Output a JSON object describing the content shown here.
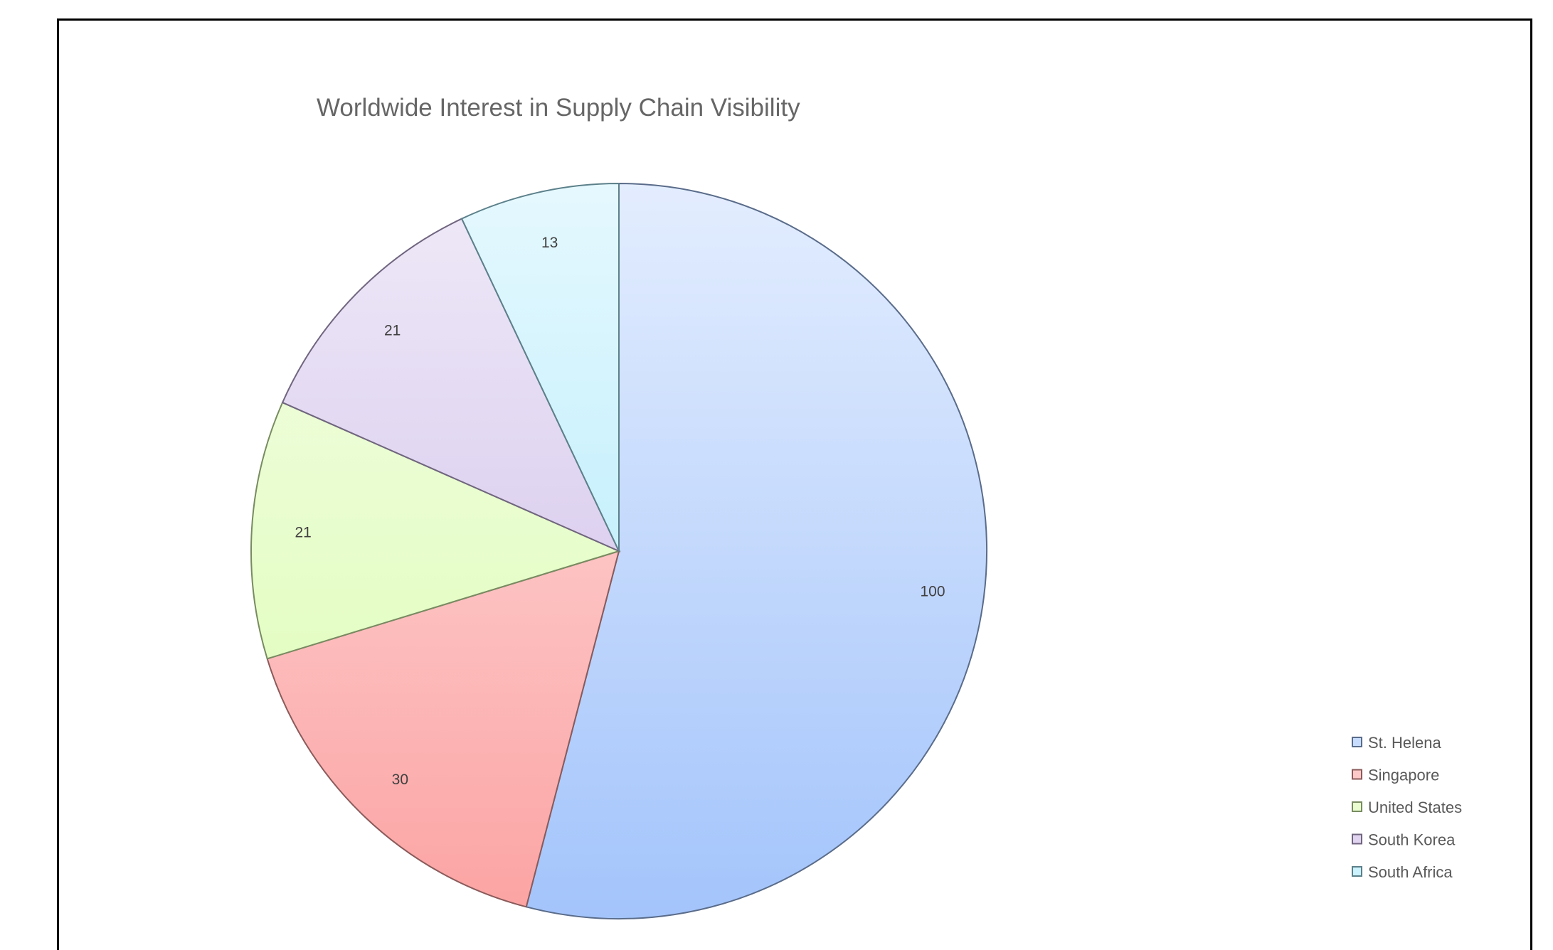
{
  "chart_data": {
    "type": "pie",
    "title": "Worldwide Interest in Supply Chain Visibility",
    "categories": [
      "St. Helena",
      "Singapore",
      "United States",
      "South Korea",
      "South Africa"
    ],
    "values": [
      100,
      30,
      21,
      21,
      13
    ],
    "data_labels": [
      "100",
      "30",
      "21",
      "21",
      "13"
    ],
    "colors": [
      "#a3c4fb",
      "#fca3a3",
      "#dbfcb0",
      "#cbb8e7",
      "#a8e9fb"
    ],
    "legend_position": "right-bottom"
  }
}
